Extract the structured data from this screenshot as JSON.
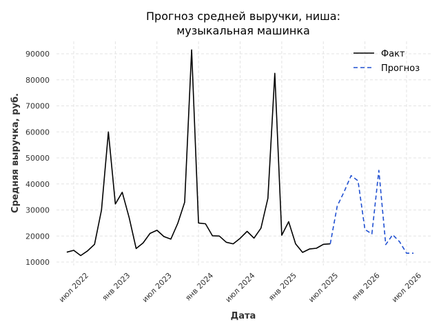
{
  "chart_data": {
    "type": "line",
    "title_lines": [
      "Прогноз средней выручки, ниша:",
      "музыкальная машинка"
    ],
    "xlabel": "Дата",
    "ylabel": "Средняя выручка, руб.",
    "ylim": [
      8500,
      95000
    ],
    "y_ticks": [
      10000,
      20000,
      30000,
      40000,
      50000,
      60000,
      70000,
      80000,
      90000
    ],
    "x_ticks": [
      {
        "label": "июл 2022",
        "date": "2022-07"
      },
      {
        "label": "янв 2023",
        "date": "2023-01"
      },
      {
        "label": "июл 2023",
        "date": "2023-07"
      },
      {
        "label": "янв 2024",
        "date": "2024-01"
      },
      {
        "label": "июл 2024",
        "date": "2024-07"
      },
      {
        "label": "янв 2025",
        "date": "2025-01"
      },
      {
        "label": "июл 2025",
        "date": "2025-07"
      },
      {
        "label": "янв 2026",
        "date": "2026-01"
      },
      {
        "label": "июл 2026",
        "date": "2026-07"
      }
    ],
    "grid": true,
    "legend_position": "top-right",
    "series": [
      {
        "name": "Факт",
        "color": "#000000",
        "style": "solid",
        "x": [
          "2022-06",
          "2022-07",
          "2022-08",
          "2022-09",
          "2022-10",
          "2022-11",
          "2022-12",
          "2023-01",
          "2023-02",
          "2023-03",
          "2023-04",
          "2023-05",
          "2023-06",
          "2023-07",
          "2023-08",
          "2023-09",
          "2023-10",
          "2023-11",
          "2023-12",
          "2024-01",
          "2024-02",
          "2024-03",
          "2024-04",
          "2024-05",
          "2024-06",
          "2024-07",
          "2024-08",
          "2024-09",
          "2024-10",
          "2024-11",
          "2024-12",
          "2025-01",
          "2025-02",
          "2025-03",
          "2025-04",
          "2025-05",
          "2025-06",
          "2025-07",
          "2025-08"
        ],
        "y": [
          13800,
          14500,
          12500,
          14300,
          16800,
          30000,
          60000,
          32300,
          36800,
          27000,
          15200,
          17300,
          21000,
          22200,
          19800,
          18800,
          24800,
          33000,
          91500,
          25000,
          24700,
          20100,
          20000,
          17600,
          17000,
          19100,
          21800,
          19200,
          23000,
          34500,
          82500,
          20300,
          25500,
          17000,
          13700,
          15000,
          15300,
          16800,
          17000
        ]
      },
      {
        "name": "Прогноз",
        "color": "#1f4fd1",
        "style": "dashed",
        "x": [
          "2025-08",
          "2025-09",
          "2025-10",
          "2025-11",
          "2025-12",
          "2026-01",
          "2026-02",
          "2026-03",
          "2026-04",
          "2026-05",
          "2026-06",
          "2026-07",
          "2026-08"
        ],
        "y": [
          17000,
          31500,
          37000,
          43200,
          41200,
          22500,
          20800,
          45200,
          16700,
          20500,
          17800,
          13400,
          13400
        ]
      }
    ]
  }
}
